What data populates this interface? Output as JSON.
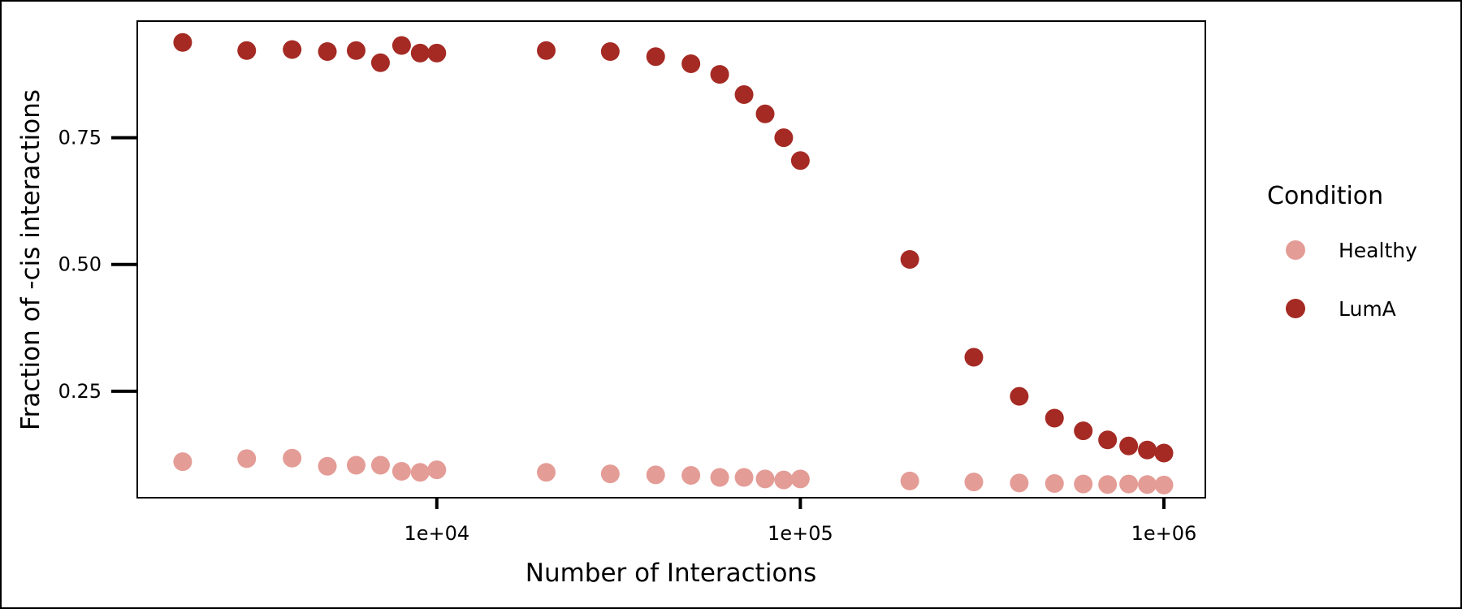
{
  "chart_data": {
    "type": "scatter",
    "title": "",
    "xlabel": "Number of Interactions",
    "ylabel": "Fraction of -cis interactions",
    "x_scale": "log",
    "xlim": [
      1500,
      1300000
    ],
    "ylim": [
      0.04,
      0.98
    ],
    "x_ticks": [
      {
        "value": 10000,
        "label": "1e+04"
      },
      {
        "value": 100000,
        "label": "1e+05"
      },
      {
        "value": 1000000,
        "label": "1e+06"
      }
    ],
    "y_ticks": [
      {
        "value": 0.25,
        "label": "0.25"
      },
      {
        "value": 0.5,
        "label": "0.50"
      },
      {
        "value": 0.75,
        "label": "0.75"
      }
    ],
    "grid": false,
    "legend": {
      "title": "Condition",
      "position": "right"
    },
    "x": [
      2000,
      3000,
      4000,
      5000,
      6000,
      7000,
      8000,
      9000,
      10000,
      20000,
      30000,
      40000,
      50000,
      60000,
      70000,
      80000,
      90000,
      100000,
      200000,
      300000,
      400000,
      500000,
      600000,
      700000,
      800000,
      900000,
      1000000
    ],
    "series": [
      {
        "name": "Healthy",
        "color": "#e49c96",
        "values": [
          0.111,
          0.117,
          0.118,
          0.102,
          0.104,
          0.104,
          0.092,
          0.09,
          0.095,
          0.09,
          0.087,
          0.085,
          0.084,
          0.08,
          0.08,
          0.077,
          0.075,
          0.077,
          0.073,
          0.071,
          0.069,
          0.068,
          0.067,
          0.066,
          0.067,
          0.066,
          0.065
        ]
      },
      {
        "name": "LumA",
        "color": "#a52a24",
        "values": [
          0.938,
          0.922,
          0.924,
          0.92,
          0.922,
          0.898,
          0.932,
          0.917,
          0.917,
          0.922,
          0.92,
          0.91,
          0.896,
          0.875,
          0.835,
          0.797,
          0.75,
          0.705,
          0.51,
          0.317,
          0.24,
          0.197,
          0.172,
          0.154,
          0.142,
          0.134,
          0.128
        ]
      }
    ]
  }
}
